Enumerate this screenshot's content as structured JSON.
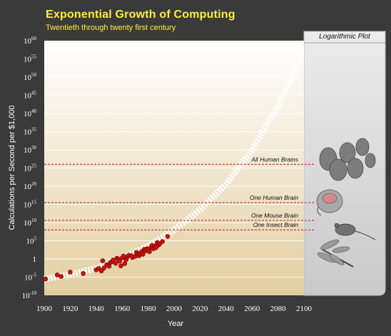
{
  "chart_data": {
    "type": "scatter",
    "title": "Exponential Growth of Computing",
    "subtitle": "Twentieth through twenty first century",
    "xlabel": "Year",
    "ylabel": "Calculations per Second per $1,000",
    "xlim": [
      1900,
      2100
    ],
    "ylim_exponent": [
      -10,
      60
    ],
    "y_scale": "log10",
    "x_ticks": [
      1900,
      1920,
      1940,
      1960,
      1980,
      2000,
      2020,
      2040,
      2060,
      2080,
      2100
    ],
    "y_ticks": [
      {
        "base": "10",
        "exp": "-10"
      },
      {
        "base": "10",
        "exp": "-5"
      },
      {
        "base": "1",
        "exp": ""
      },
      {
        "base": "10",
        "exp": "5"
      },
      {
        "base": "10",
        "exp": "10"
      },
      {
        "base": "10",
        "exp": "15"
      },
      {
        "base": "10",
        "exp": "20"
      },
      {
        "base": "10",
        "exp": "25"
      },
      {
        "base": "10",
        "exp": "30"
      },
      {
        "base": "10",
        "exp": "35"
      },
      {
        "base": "10",
        "exp": "40"
      },
      {
        "base": "10",
        "exp": "45"
      },
      {
        "base": "10",
        "exp": "50"
      },
      {
        "base": "10",
        "exp": "55"
      },
      {
        "base": "10",
        "exp": "60"
      }
    ],
    "trend_curve": {
      "x": [
        1900,
        1920,
        1940,
        1960,
        1980,
        2000,
        2020,
        2040,
        2060,
        2080,
        2095
      ],
      "log10_y": [
        -5.5,
        -4.3,
        -2.6,
        0.2,
        3.5,
        8.0,
        13.5,
        20.5,
        30.0,
        42.0,
        53.5
      ]
    },
    "points": {
      "x": [
        1901,
        1910,
        1913,
        1920,
        1930,
        1940,
        1942,
        1944,
        1945,
        1946,
        1948,
        1950,
        1951,
        1952,
        1953,
        1955,
        1956,
        1957,
        1958,
        1959,
        1960,
        1961,
        1962,
        1963,
        1964,
        1965,
        1967,
        1968,
        1970,
        1971,
        1972,
        1973,
        1974,
        1975,
        1976,
        1977,
        1978,
        1979,
        1980,
        1981,
        1982,
        1983,
        1984,
        1985,
        1986,
        1987,
        1988,
        1989,
        1991,
        1995
      ],
      "log10_y": [
        -5.5,
        -4.4,
        -4.8,
        -3.6,
        -4.0,
        -3.0,
        -2.6,
        -3.3,
        -0.5,
        -2.5,
        -1.6,
        -2.0,
        -1.0,
        -0.8,
        -0.3,
        -1.2,
        0.2,
        0.0,
        -0.6,
        -1.9,
        0.3,
        0.8,
        -1.3,
        -0.2,
        0.5,
        1.0,
        0.9,
        0.4,
        0.7,
        1.8,
        1.3,
        0.9,
        1.5,
        2.0,
        1.3,
        2.6,
        2.2,
        2.8,
        2.6,
        2.0,
        3.1,
        3.7,
        2.8,
        3.5,
        3.1,
        4.5,
        3.8,
        4.2,
        4.8,
        6.2
      ]
    },
    "thresholds": [
      {
        "label": "All Human Brains",
        "log10_y": 26
      },
      {
        "label": "One Human Brain",
        "log10_y": 15.5
      },
      {
        "label": "One Mouse Brain",
        "log10_y": 10.6
      },
      {
        "label": "One Insect Brain",
        "log10_y": 8.0
      }
    ],
    "panel_title": "Logarithmic Plot",
    "colors": {
      "point": "#cc1111",
      "threshold": "#cc1111",
      "trend": "#ffffff",
      "title": "#ffef3a",
      "background": "#3a3a3a"
    }
  }
}
